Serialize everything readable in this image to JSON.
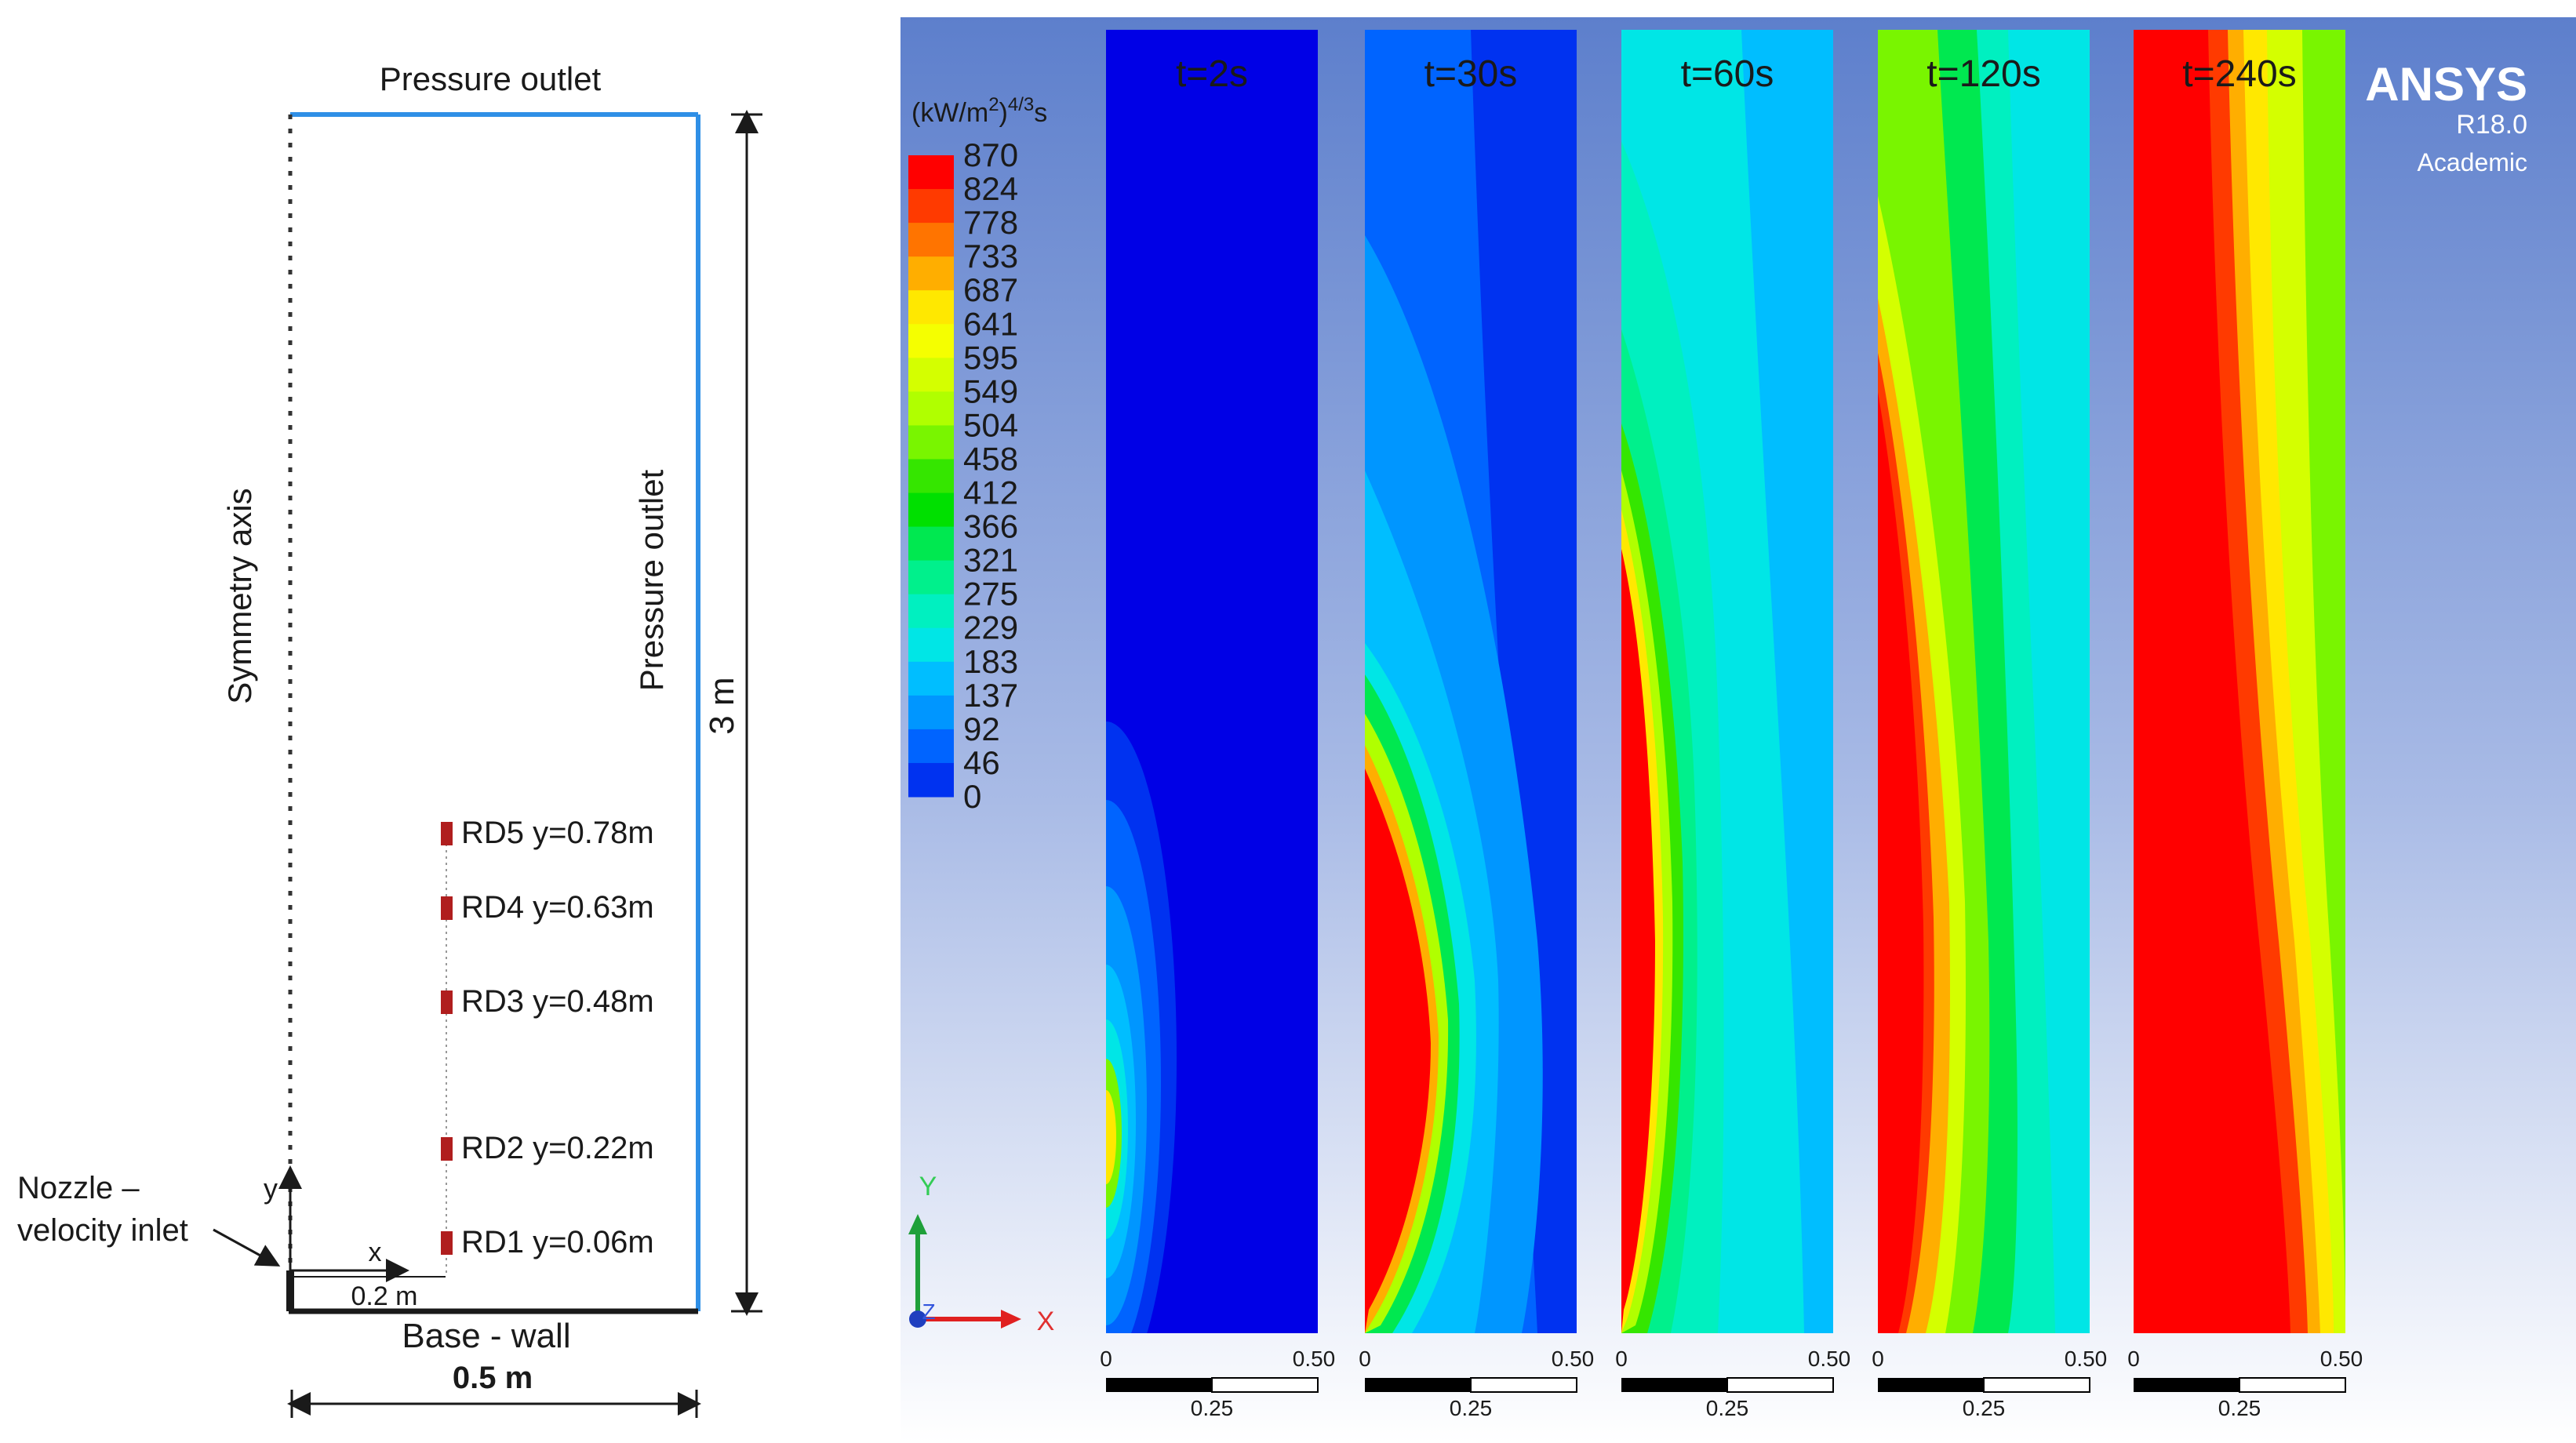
{
  "schematic": {
    "top_label": "Pressure outlet",
    "right_label": "Pressure outlet",
    "left_label": "Symmetry axis",
    "bottom_label": "Base - wall",
    "width_label": "0.5 m",
    "height_label": "3 m",
    "inlet_label_line1": "Nozzle –",
    "inlet_label_line2": "velocity inlet",
    "x_axis": "x",
    "y_axis": "y",
    "x_offset_label": "0.2 m",
    "detectors": [
      {
        "label": "RD5 y=0.78m",
        "y_m": 0.78
      },
      {
        "label": "RD4 y=0.63m",
        "y_m": 0.63
      },
      {
        "label": "RD3 y=0.48m",
        "y_m": 0.48
      },
      {
        "label": "RD2 y=0.22m",
        "y_m": 0.22
      },
      {
        "label": "RD1 y=0.06m",
        "y_m": 0.06
      }
    ]
  },
  "contour": {
    "unit_label_base": "(kW/m",
    "unit_label_sup1": "2",
    "unit_label_mid": ")",
    "unit_label_sup2": "4/3",
    "unit_label_end": "s",
    "legend_values": [
      "870",
      "824",
      "778",
      "733",
      "687",
      "641",
      "595",
      "549",
      "504",
      "458",
      "412",
      "366",
      "321",
      "275",
      "229",
      "183",
      "137",
      "92",
      "46",
      "0"
    ],
    "legend_colors": [
      "#ff0000",
      "#ff3a00",
      "#ff7400",
      "#ffae00",
      "#ffe800",
      "#f5ff00",
      "#d4ff00",
      "#b0ff00",
      "#79f500",
      "#35e600",
      "#00e000",
      "#00e850",
      "#00f08c",
      "#00f0c0",
      "#00e6e6",
      "#00beff",
      "#0096ff",
      "#0064ff",
      "#0032f0",
      "#0000e6"
    ],
    "panels": [
      {
        "time": "t=2s"
      },
      {
        "time": "t=30s"
      },
      {
        "time": "t=60s"
      },
      {
        "time": "t=120s"
      },
      {
        "time": "t=240s"
      }
    ],
    "scale_left": "0",
    "scale_right": "0.50",
    "scale_mid": "0.25",
    "brand": "ANSYS",
    "version": "R18.0",
    "edition": "Academic",
    "axis_x": "X",
    "axis_y": "Y",
    "axis_z": "Z"
  }
}
